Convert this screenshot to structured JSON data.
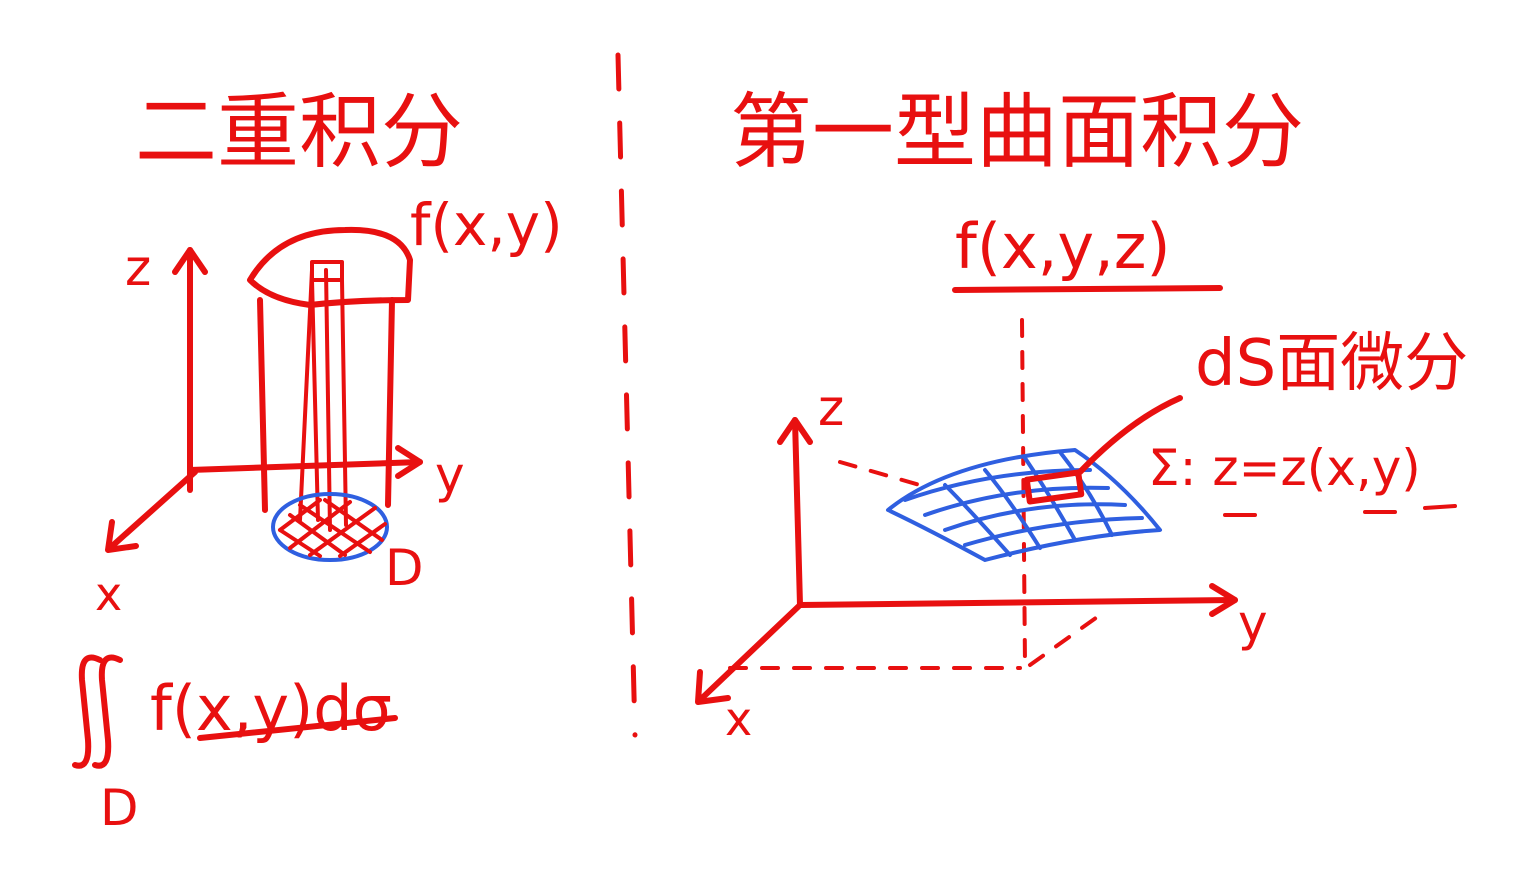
{
  "colors": {
    "ink_red": "#e81010",
    "ink_blue": "#2f5fe0",
    "background": "#ffffff"
  },
  "left": {
    "title": "二重积分",
    "function_label": "f(x,y)",
    "axis_z": "z",
    "axis_y": "y",
    "axis_x": "x",
    "region_label": "D",
    "formula_integrand": "f(x,y)dσ",
    "formula_domain": "D"
  },
  "right": {
    "title": "第一型曲面积分",
    "function_label": "f(x,y,z)",
    "element_label": "dS面微分",
    "surface_equation": "Σ: z=z(x,y)",
    "axis_z": "z",
    "axis_y": "y",
    "axis_x": "x"
  }
}
